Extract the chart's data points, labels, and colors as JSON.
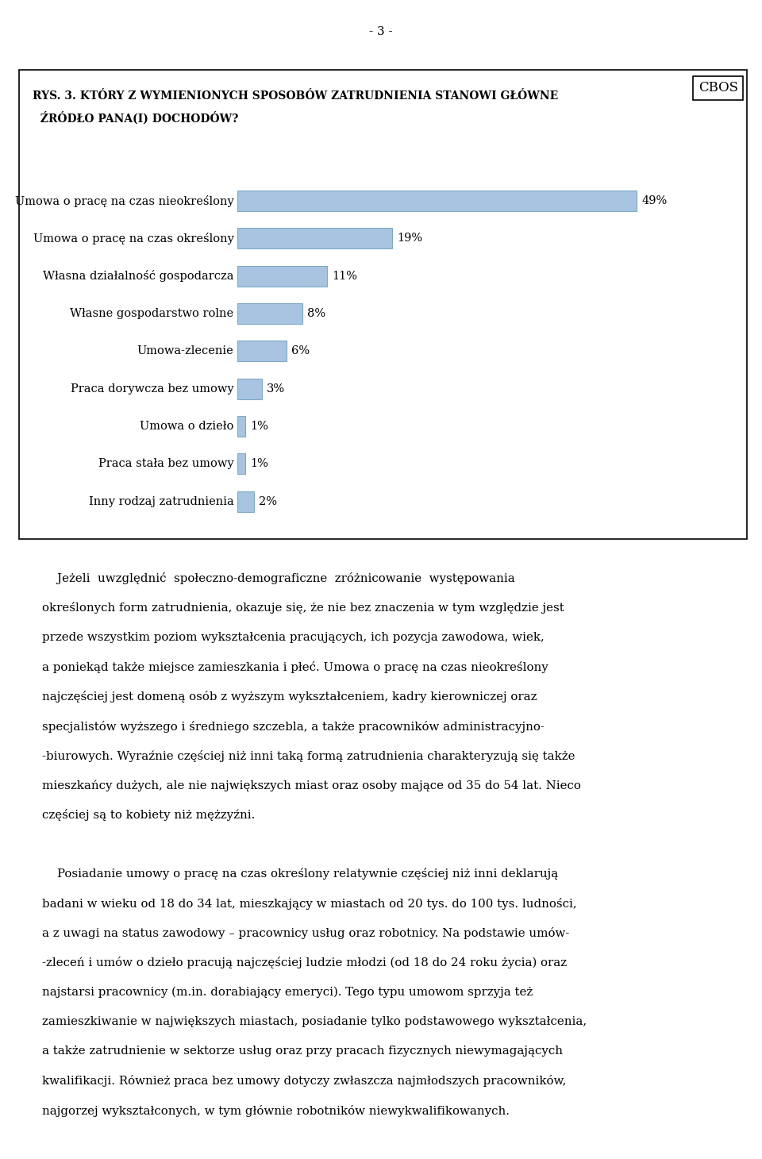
{
  "page_number": "- 3 -",
  "cbos_label": "CBOS",
  "title_line1": "RYS. 3. KTÓRY Z WYMIENIONYCH SPOSOBÓW ZATRUDNIENIA STANOWI GŁÓWNE",
  "title_line2": "  ŹRÓDŁO PANA(I) DOCHODÓW?",
  "categories": [
    "Umowa o pracę na czas nieokreślony",
    "Umowa o pracę na czas określony",
    "Własna działalność gospodarcza",
    "Własne gospodarstwo rolne",
    "Umowa-zlecenie",
    "Praca dorywcza bez umowy",
    "Umowa o dzieło",
    "Praca stała bez umowy",
    "Inny rodzaj zatrudnienia"
  ],
  "values": [
    49,
    19,
    11,
    8,
    6,
    3,
    1,
    1,
    2
  ],
  "bar_color": "#a8c4e0",
  "bar_edge_color": "#7baac8",
  "chart_bg": "#ffffff",
  "chart_border": "#000000",
  "para1_lines": [
    "    Jeżeli  uwzględnić  społeczno-demograficzne  zróżnicowanie  występowania",
    "określonych form zatrudnienia, okazuje się, że nie bez znaczenia w tym względzie jest",
    "przede wszystkim poziom wykształcenia pracujących, ich pozycja zawodowa, wiek,",
    "a poniekąd także miejsce zamieszkania i płeć. Umowa o pracę na czas nieokreślony",
    "najczęściej jest domeną osób z wyższym wykształceniem, kadry kierowniczej oraz",
    "specjalistów wyższego i średniego szczebla, a także pracowników administracyjno-",
    "-biurowych. Wyraźnie częściej niż inni taką formą zatrudnienia charakteryzują się także",
    "mieszkańcy dużych, ale nie największych miast oraz osoby mające od 35 do 54 lat. Nieco",
    "częściej są to kobiety niż mężzyźni."
  ],
  "para2_lines": [
    "    Posiadanie umowy o pracę na czas określony relatywnie częściej niż inni deklarują",
    "badani w wieku od 18 do 34 lat, mieszkający w miastach od 20 tys. do 100 tys. ludności,",
    "a z uwagi na status zawodowy – pracownicy usług oraz robotnicy. Na podstawie umów-",
    "-zleceń i umów o dzieło pracują najczęściej ludzie młodzi (od 18 do 24 roku życia) oraz",
    "najstarsi pracownicy (m.in. dorabiający emeryci). Tego typu umowom sprzyja też",
    "zamieszkiwanie w największych miastach, posiadanie tylko podstawowego wykształcenia,",
    "a także zatrudnienie w sektorze usług oraz przy pracach fizycznych niewymagających",
    "kwalifikacji. Również praca bez umowy dotyczy zwłaszcza najmłodszych pracowników,",
    "najgorzej wykształconych, w tym głównie robotników niewykwalifikowanych."
  ]
}
